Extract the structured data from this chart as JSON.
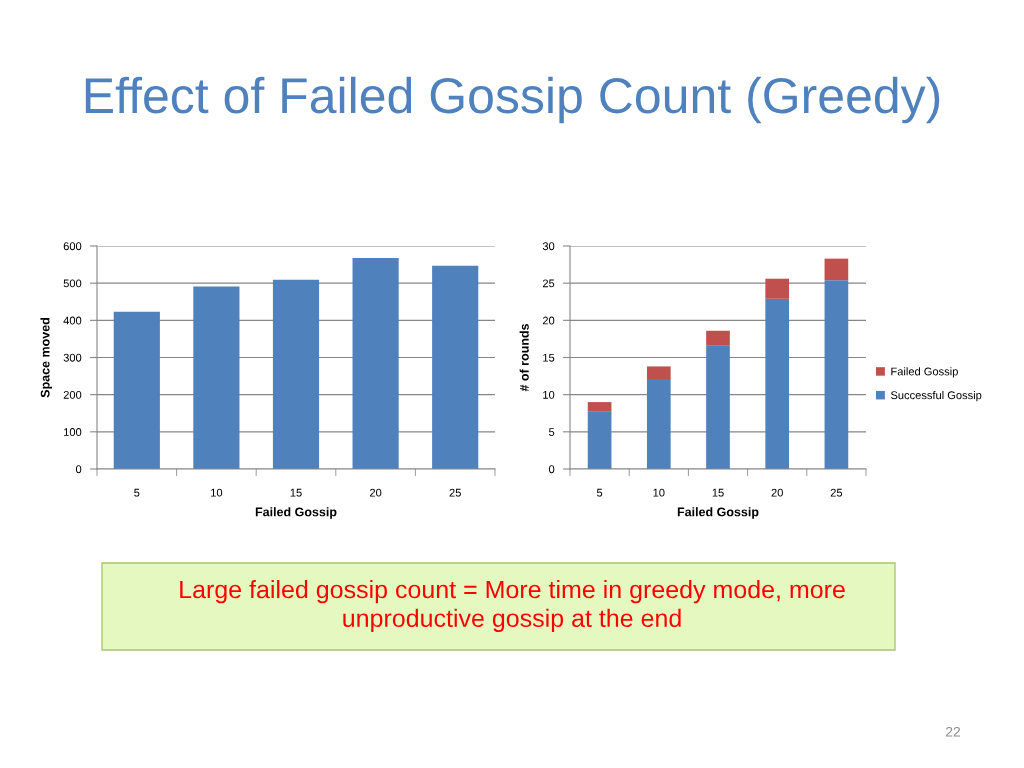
{
  "chart_data": [
    {
      "type": "bar",
      "title": "Effect of Failed Gossip Count (Greedy)",
      "xlabel": "Failed Gossip",
      "ylabel": "Space moved",
      "categories": [
        "5",
        "10",
        "15",
        "20",
        "25"
      ],
      "values": [
        423,
        491,
        509,
        568,
        547
      ],
      "color": "#4f81bd",
      "ylim": [
        0,
        600
      ],
      "yticks": [
        0,
        100,
        200,
        300,
        400,
        500,
        600
      ],
      "grid": "y",
      "annotations": [
        "Large failed gossip count = More time in greedy mode, more\nunproductive gossip at the end",
        "22"
      ]
    },
    {
      "type": "bar",
      "stacked": true,
      "xlabel": "Failed Gossip",
      "ylabel": "# of rounds",
      "categories": [
        "5",
        "10",
        "15",
        "20",
        "25"
      ],
      "series": [
        {
          "name": "Successful Gossip",
          "color": "#4f81bd",
          "values": [
            7.7,
            12.1,
            16.6,
            22.9,
            25.4
          ]
        },
        {
          "name": "Failed Gossip",
          "color": "#c0504d",
          "values": [
            1.3,
            1.7,
            2.0,
            2.7,
            2.9
          ]
        }
      ],
      "ylim": [
        0,
        30
      ],
      "yticks": [
        0,
        5,
        10,
        15,
        20,
        25,
        30
      ],
      "grid": "y",
      "legend": "right"
    }
  ]
}
